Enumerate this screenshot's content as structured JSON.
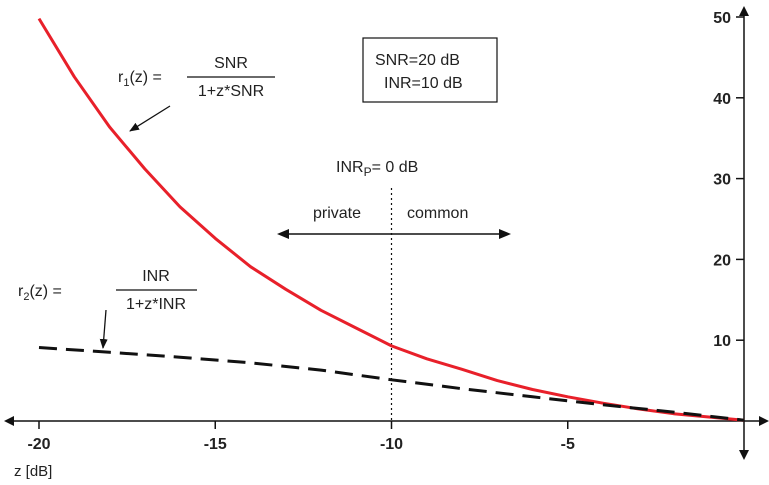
{
  "chart_data": {
    "type": "line",
    "xlabel": "z [dB]",
    "xlim": [
      -20,
      0
    ],
    "ylim": [
      0,
      50
    ],
    "xticks": [
      -20,
      -15,
      -10,
      -5
    ],
    "xtick_labels": [
      "-20",
      "-15",
      "-10",
      "-5"
    ],
    "yticks": [
      10,
      20,
      30,
      40,
      50
    ],
    "ytick_labels": [
      "10",
      "20",
      "30",
      "40",
      "50"
    ],
    "grid": false,
    "legend": "none",
    "series": [
      {
        "formula": "SNR/(1+z*SNR)",
        "color": "#e8202a",
        "style": "solid",
        "x": [
          -20,
          -19,
          -18,
          -17,
          -16,
          -15,
          -14,
          -13,
          -12,
          -11,
          -10,
          -9,
          -8,
          -7,
          -6,
          -5,
          -4,
          -3,
          -2,
          -1,
          0
        ],
        "values": [
          49.8,
          42.6,
          36.4,
          31.2,
          26.5,
          22.6,
          19.1,
          16.3,
          13.7,
          11.5,
          9.3,
          7.7,
          6.4,
          5.0,
          3.9,
          3.0,
          2.2,
          1.5,
          0.9,
          0.5,
          0.1
        ]
      },
      {
        "formula": "INR/(1+z*INR)",
        "color": "#111111",
        "style": "dashed",
        "x": [
          -20,
          -18,
          -16,
          -14,
          -12,
          -10,
          -8,
          -6,
          -4,
          -2,
          0
        ],
        "values": [
          9.1,
          8.5,
          7.9,
          7.2,
          6.3,
          5.1,
          4.0,
          3.0,
          2.0,
          1.1,
          0.1
        ]
      }
    ],
    "vline": {
      "x": -10,
      "style": "dotted"
    },
    "annotations": {
      "params_box": [
        "SNR=20 dB",
        "INR=10 dB"
      ],
      "inrp": {
        "main": "INR",
        "sub": "P",
        "rest": "= 0 dB"
      },
      "private_label": "private",
      "common_label": "common",
      "r1": {
        "name": "r",
        "sub": "1",
        "arg": "(z) =",
        "numerator": "SNR",
        "denominator": "1+z*SNR"
      },
      "r2": {
        "name": "r",
        "sub": "2",
        "arg": "(z) =",
        "numerator": "INR",
        "denominator": "1+z*INR"
      }
    }
  }
}
